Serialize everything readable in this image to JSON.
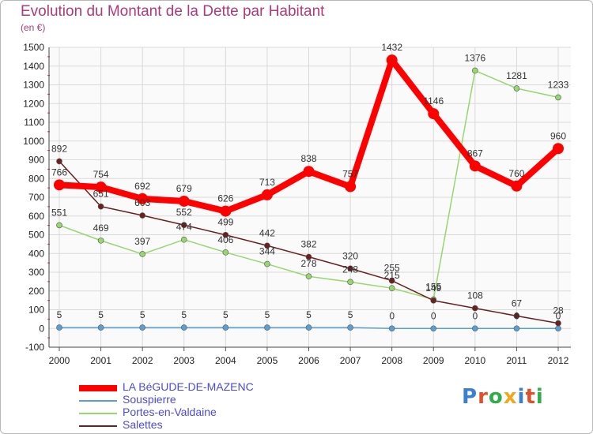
{
  "title": "Evolution du Montant de la Dette par Habitant",
  "subtitle": "(en €)",
  "logo": {
    "text": "Proxiti",
    "colors": [
      "#3a7fd0",
      "#e0502a",
      "#2fae4a",
      "#f2a81e",
      "#3a7fd0",
      "#e0502a",
      "#2fae4a"
    ]
  },
  "chart_data": {
    "type": "line",
    "x": [
      "2000",
      "2001",
      "2002",
      "2003",
      "2004",
      "2005",
      "2006",
      "2007",
      "2008",
      "2009",
      "2010",
      "2011",
      "2012"
    ],
    "ylim": [
      -100,
      1500
    ],
    "yticks": [
      -100,
      0,
      100,
      200,
      300,
      400,
      500,
      600,
      700,
      800,
      900,
      1000,
      1100,
      1200,
      1300,
      1400,
      1500
    ],
    "grid": true,
    "legend_position": "bottom-left",
    "series": [
      {
        "name": "LA BéGUDE-DE-MAZENC",
        "color": "#ff0000",
        "values": [
          766,
          754,
          692,
          679,
          626,
          713,
          838,
          757,
          1432,
          1146,
          867,
          760,
          960
        ]
      },
      {
        "name": "Souspierre",
        "color": "#5a9fd4",
        "values": [
          5,
          5,
          5,
          5,
          5,
          5,
          5,
          5,
          0,
          0,
          0,
          0,
          0
        ]
      },
      {
        "name": "Portes-en-Valdaine",
        "color": "#98d66f",
        "values": [
          551,
          469,
          397,
          474,
          406,
          344,
          278,
          248,
          215,
          155,
          1376,
          1281,
          1233
        ]
      },
      {
        "name": "Salettes",
        "color": "#6b1f1f",
        "values": [
          892,
          651,
          603,
          552,
          499,
          442,
          382,
          320,
          255,
          149,
          108,
          67,
          28
        ]
      }
    ]
  }
}
